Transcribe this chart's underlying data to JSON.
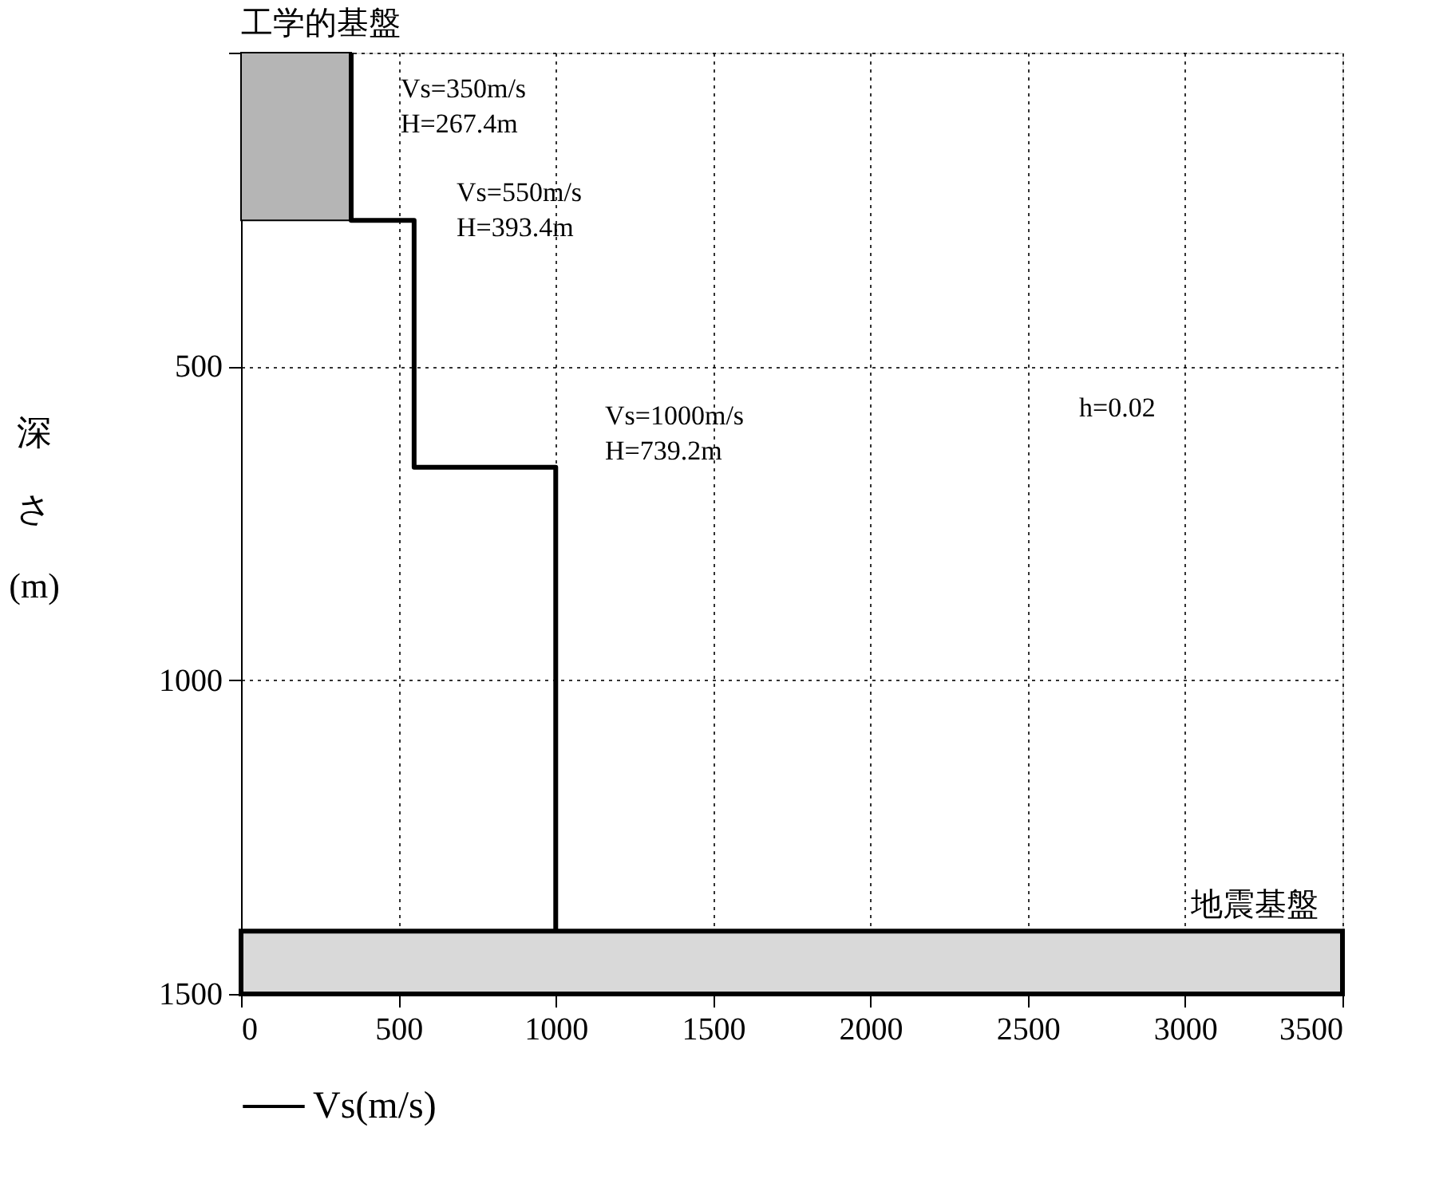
{
  "chart_data": {
    "type": "line",
    "title": "工学的基盤",
    "ylabel": "深さ (m)",
    "xlim": [
      0,
      3500
    ],
    "xticks": [
      0,
      500,
      1000,
      1500,
      2000,
      2500,
      3000,
      3500
    ],
    "ylim": [
      1500,
      0
    ],
    "yticks": [
      {
        "value": 0,
        "label": null
      },
      500,
      1000,
      1500
    ],
    "grid": true,
    "legend": "bottom",
    "line_style": "solid",
    "marker": "none",
    "series": [
      {
        "type": "area",
        "color": "#b5b5b5",
        "x": [
          0,
          350
        ],
        "values": [
          267.4,
          267.4
        ]
      },
      {
        "name": "Vs(m/s)",
        "color": "#000000",
        "x": [
          350,
          350,
          550,
          550,
          1000,
          1000
        ],
        "values": [
          0,
          267.4,
          267.4,
          660.8,
          660.8,
          1400
        ]
      }
    ],
    "bands": [
      {
        "axis": "y",
        "from": 1400,
        "to": 1500,
        "label": "地震基盤",
        "color": "#d9d9d9"
      }
    ],
    "annotations": [
      "Vs=350m/s\nH=267.4m",
      "Vs=550m/s\nH=393.4m",
      "Vs=1000m/s\nH=739.2m",
      "h=0.02"
    ]
  }
}
